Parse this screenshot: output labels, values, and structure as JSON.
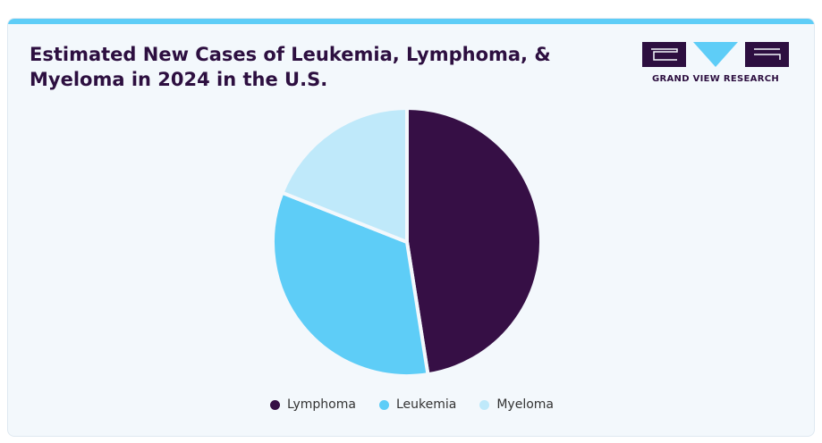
{
  "header": {
    "title": "Estimated New Cases of Leukemia, Lymphoma, & Myeloma in 2024 in the U.S."
  },
  "logo": {
    "text": "GRAND VIEW RESEARCH",
    "icon": "gvr-logo-icon",
    "colors": {
      "dark": "#2d0f40",
      "accent": "#5ecdf7"
    }
  },
  "chart_data": {
    "type": "pie",
    "title": "Estimated New Cases of Leukemia, Lymphoma, & Myeloma in 2024 in the U.S.",
    "categories": [
      "Lymphoma",
      "Leukemia",
      "Myeloma"
    ],
    "values": [
      47.5,
      33.5,
      19.0
    ],
    "unit": "%",
    "colors": [
      "#360f45",
      "#5ecdf7",
      "#bfe9fa"
    ],
    "legend": "bottom"
  }
}
